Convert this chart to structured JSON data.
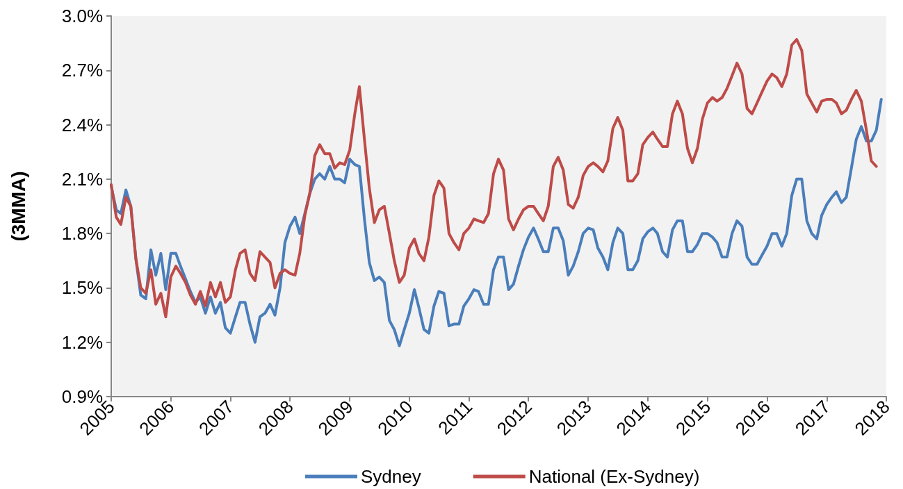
{
  "chart_data": {
    "type": "line",
    "ylabel": "(3MMA)",
    "x": [
      "2005-01",
      "2005-02",
      "2005-03",
      "2005-04",
      "2005-05",
      "2005-06",
      "2005-07",
      "2005-08",
      "2005-09",
      "2005-10",
      "2005-11",
      "2005-12",
      "2006-01",
      "2006-02",
      "2006-03",
      "2006-04",
      "2006-05",
      "2006-06",
      "2006-07",
      "2006-08",
      "2006-09",
      "2006-10",
      "2006-11",
      "2006-12",
      "2007-01",
      "2007-02",
      "2007-03",
      "2007-04",
      "2007-05",
      "2007-06",
      "2007-07",
      "2007-08",
      "2007-09",
      "2007-10",
      "2007-11",
      "2007-12",
      "2008-01",
      "2008-02",
      "2008-03",
      "2008-04",
      "2008-05",
      "2008-06",
      "2008-07",
      "2008-08",
      "2008-09",
      "2008-10",
      "2008-11",
      "2008-12",
      "2009-01",
      "2009-02",
      "2009-03",
      "2009-04",
      "2009-05",
      "2009-06",
      "2009-07",
      "2009-08",
      "2009-09",
      "2009-10",
      "2009-11",
      "2009-12",
      "2010-01",
      "2010-02",
      "2010-03",
      "2010-04",
      "2010-05",
      "2010-06",
      "2010-07",
      "2010-08",
      "2010-09",
      "2010-10",
      "2010-11",
      "2010-12",
      "2011-01",
      "2011-02",
      "2011-03",
      "2011-04",
      "2011-05",
      "2011-06",
      "2011-07",
      "2011-08",
      "2011-09",
      "2011-10",
      "2011-11",
      "2011-12",
      "2012-01",
      "2012-02",
      "2012-03",
      "2012-04",
      "2012-05",
      "2012-06",
      "2012-07",
      "2012-08",
      "2012-09",
      "2012-10",
      "2012-11",
      "2012-12",
      "2013-01",
      "2013-02",
      "2013-03",
      "2013-04",
      "2013-05",
      "2013-06",
      "2013-07",
      "2013-08",
      "2013-09",
      "2013-10",
      "2013-11",
      "2013-12",
      "2014-01",
      "2014-02",
      "2014-03",
      "2014-04",
      "2014-05",
      "2014-06",
      "2014-07",
      "2014-08",
      "2014-09",
      "2014-10",
      "2014-11",
      "2014-12",
      "2015-01",
      "2015-02",
      "2015-03",
      "2015-04",
      "2015-05",
      "2015-06",
      "2015-07",
      "2015-08",
      "2015-09",
      "2015-10",
      "2015-11",
      "2015-12",
      "2016-01",
      "2016-02",
      "2016-03",
      "2016-04",
      "2016-05",
      "2016-06",
      "2016-07",
      "2016-08",
      "2016-09",
      "2016-10",
      "2016-11",
      "2016-12",
      "2017-01",
      "2017-02",
      "2017-03",
      "2017-04",
      "2017-05",
      "2017-06",
      "2017-07",
      "2017-08",
      "2017-09",
      "2017-10",
      "2017-11",
      "2017-12"
    ],
    "series": [
      {
        "name": "Sydney",
        "color": "#4a7ebb",
        "values": [
          2.06,
          1.93,
          1.91,
          2.04,
          1.95,
          1.66,
          1.46,
          1.44,
          1.71,
          1.57,
          1.69,
          1.49,
          1.69,
          1.69,
          1.62,
          1.55,
          1.48,
          1.42,
          1.45,
          1.36,
          1.45,
          1.36,
          1.42,
          1.28,
          1.25,
          1.34,
          1.42,
          1.42,
          1.3,
          1.2,
          1.34,
          1.36,
          1.41,
          1.35,
          1.5,
          1.75,
          1.84,
          1.89,
          1.8,
          1.91,
          2.02,
          2.1,
          2.13,
          2.1,
          2.17,
          2.1,
          2.1,
          2.08,
          2.21,
          2.18,
          2.17,
          1.88,
          1.64,
          1.54,
          1.56,
          1.53,
          1.32,
          1.27,
          1.18,
          1.27,
          1.36,
          1.49,
          1.39,
          1.27,
          1.25,
          1.4,
          1.48,
          1.47,
          1.29,
          1.3,
          1.3,
          1.4,
          1.44,
          1.49,
          1.48,
          1.41,
          1.41,
          1.6,
          1.67,
          1.67,
          1.49,
          1.52,
          1.62,
          1.71,
          1.78,
          1.83,
          1.77,
          1.7,
          1.7,
          1.83,
          1.83,
          1.76,
          1.57,
          1.62,
          1.7,
          1.8,
          1.83,
          1.82,
          1.72,
          1.67,
          1.6,
          1.75,
          1.83,
          1.8,
          1.6,
          1.6,
          1.65,
          1.77,
          1.81,
          1.83,
          1.8,
          1.7,
          1.67,
          1.82,
          1.87,
          1.87,
          1.7,
          1.7,
          1.74,
          1.8,
          1.8,
          1.78,
          1.75,
          1.67,
          1.67,
          1.8,
          1.87,
          1.84,
          1.67,
          1.63,
          1.63,
          1.68,
          1.73,
          1.8,
          1.8,
          1.73,
          1.8,
          2.01,
          2.1,
          2.1,
          1.87,
          1.8,
          1.77,
          1.9,
          1.96,
          2.0,
          2.03,
          1.97,
          2.0,
          2.16,
          2.32,
          2.39,
          2.31,
          2.31,
          2.37,
          2.54
        ]
      },
      {
        "name": "National (Ex-Sydney)",
        "color": "#be4b48",
        "values": [
          2.07,
          1.89,
          1.85,
          2.0,
          1.95,
          1.66,
          1.5,
          1.47,
          1.6,
          1.41,
          1.47,
          1.34,
          1.56,
          1.62,
          1.58,
          1.53,
          1.46,
          1.41,
          1.48,
          1.4,
          1.53,
          1.45,
          1.53,
          1.42,
          1.45,
          1.6,
          1.69,
          1.71,
          1.58,
          1.54,
          1.7,
          1.67,
          1.64,
          1.5,
          1.58,
          1.6,
          1.58,
          1.57,
          1.69,
          1.9,
          2.02,
          2.23,
          2.29,
          2.24,
          2.24,
          2.16,
          2.19,
          2.18,
          2.26,
          2.46,
          2.61,
          2.32,
          2.05,
          1.86,
          1.93,
          1.95,
          1.8,
          1.65,
          1.53,
          1.57,
          1.72,
          1.77,
          1.69,
          1.65,
          1.78,
          2.01,
          2.09,
          2.05,
          1.8,
          1.75,
          1.71,
          1.8,
          1.83,
          1.88,
          1.87,
          1.86,
          1.91,
          2.13,
          2.21,
          2.15,
          1.88,
          1.82,
          1.88,
          1.93,
          1.95,
          1.95,
          1.91,
          1.87,
          1.95,
          2.17,
          2.22,
          2.15,
          1.96,
          1.94,
          2.0,
          2.12,
          2.17,
          2.19,
          2.17,
          2.14,
          2.2,
          2.38,
          2.44,
          2.37,
          2.09,
          2.09,
          2.13,
          2.29,
          2.33,
          2.36,
          2.32,
          2.28,
          2.28,
          2.46,
          2.53,
          2.46,
          2.27,
          2.19,
          2.27,
          2.43,
          2.52,
          2.55,
          2.53,
          2.55,
          2.6,
          2.67,
          2.74,
          2.68,
          2.49,
          2.46,
          2.52,
          2.58,
          2.64,
          2.68,
          2.66,
          2.61,
          2.68,
          2.84,
          2.87,
          2.81,
          2.57,
          2.52,
          2.47,
          2.53,
          2.54,
          2.54,
          2.52,
          2.46,
          2.48,
          2.54,
          2.59,
          2.53,
          2.37,
          2.2,
          2.17,
          null
        ]
      }
    ],
    "xlim": [
      "2005",
      "2018"
    ],
    "xticks": [
      "2005",
      "2006",
      "2007",
      "2008",
      "2009",
      "2010",
      "2011",
      "2012",
      "2013",
      "2014",
      "2015",
      "2016",
      "2017",
      "2018"
    ],
    "ylim": [
      0.9,
      3.0
    ],
    "yticks": [
      {
        "value": 0.9,
        "label": "0.9%"
      },
      {
        "value": 1.2,
        "label": "1.2%"
      },
      {
        "value": 1.5,
        "label": "1.5%"
      },
      {
        "value": 1.8,
        "label": "1.8%"
      },
      {
        "value": 2.1,
        "label": "2.1%"
      },
      {
        "value": 2.4,
        "label": "2.4%"
      },
      {
        "value": 2.7,
        "label": "2.7%"
      },
      {
        "value": 3.0,
        "label": "3.0%"
      }
    ],
    "grid": false,
    "legend": "bottom",
    "marker": "none",
    "line_style": "solid"
  }
}
